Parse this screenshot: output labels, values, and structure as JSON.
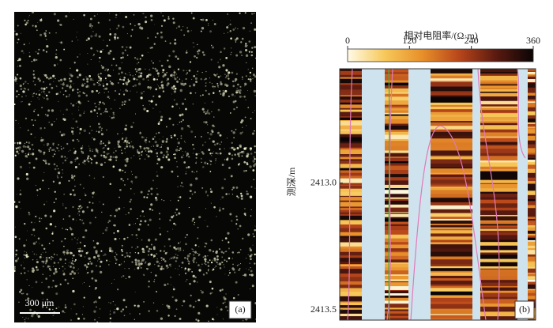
{
  "panel_a": {
    "scale_bar": "300 μm",
    "label": "(a)"
  },
  "panel_b": {
    "label": "(b)",
    "colorbar": {
      "title": "相对电阻率/(Ω·m)",
      "lim": [
        0,
        360
      ],
      "ticks": [
        0,
        120,
        240,
        360
      ]
    },
    "depth_axis": {
      "title": "测深/m",
      "lim": [
        2412.55,
        2413.54
      ],
      "ticks": [
        {
          "value": 2413.0,
          "label": "2413.0"
        },
        {
          "value": 2413.5,
          "label": "2413.5"
        }
      ]
    }
  }
}
